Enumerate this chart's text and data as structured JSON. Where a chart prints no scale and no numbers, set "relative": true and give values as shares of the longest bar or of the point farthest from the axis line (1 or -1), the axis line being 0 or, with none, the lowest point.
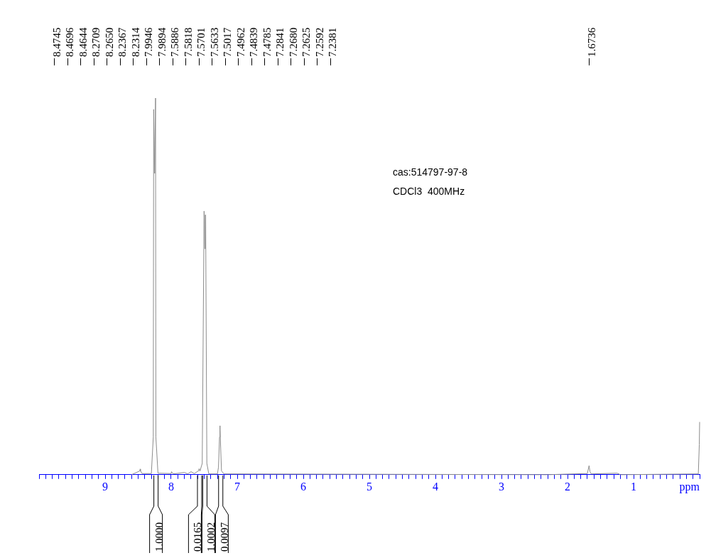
{
  "chart_data": {
    "type": "line",
    "relative": true,
    "xlabel": "ppm",
    "color": "#8c8c8c",
    "xlim": [
      10,
      0
    ],
    "xticks": [
      {
        "value": 10,
        "label": null
      },
      {
        "value": 9.9,
        "label": null
      },
      {
        "value": 9.8,
        "label": null
      },
      {
        "value": 9.7,
        "label": null
      },
      {
        "value": 9.6,
        "label": null
      },
      {
        "value": 9.5,
        "label": null
      },
      {
        "value": 9.4,
        "label": null
      },
      {
        "value": 9.3,
        "label": null
      },
      {
        "value": 9.2,
        "label": null
      },
      {
        "value": 9.1,
        "label": null
      },
      9,
      {
        "value": 8.9,
        "label": null
      },
      {
        "value": 8.8,
        "label": null
      },
      {
        "value": 8.7,
        "label": null
      },
      {
        "value": 8.6,
        "label": null
      },
      {
        "value": 8.5,
        "label": null
      },
      {
        "value": 8.4,
        "label": null
      },
      {
        "value": 8.3,
        "label": null
      },
      {
        "value": 8.2,
        "label": null
      },
      {
        "value": 8.1,
        "label": null
      },
      8,
      {
        "value": 7.9,
        "label": null
      },
      {
        "value": 7.8,
        "label": null
      },
      {
        "value": 7.7,
        "label": null
      },
      {
        "value": 7.6,
        "label": null
      },
      {
        "value": 7.5,
        "label": null
      },
      {
        "value": 7.4,
        "label": null
      },
      {
        "value": 7.3,
        "label": null
      },
      {
        "value": 7.2,
        "label": null
      },
      {
        "value": 7.1,
        "label": null
      },
      7,
      {
        "value": 6.9,
        "label": null
      },
      {
        "value": 6.8,
        "label": null
      },
      {
        "value": 6.7,
        "label": null
      },
      {
        "value": 6.6,
        "label": null
      },
      {
        "value": 6.5,
        "label": null
      },
      {
        "value": 6.4,
        "label": null
      },
      {
        "value": 6.3,
        "label": null
      },
      {
        "value": 6.2,
        "label": null
      },
      {
        "value": 6.1,
        "label": null
      },
      6,
      {
        "value": 5.9,
        "label": null
      },
      {
        "value": 5.8,
        "label": null
      },
      {
        "value": 5.7,
        "label": null
      },
      {
        "value": 5.6,
        "label": null
      },
      {
        "value": 5.5,
        "label": null
      },
      {
        "value": 5.4,
        "label": null
      },
      {
        "value": 5.3,
        "label": null
      },
      {
        "value": 5.2,
        "label": null
      },
      {
        "value": 5.1,
        "label": null
      },
      5,
      {
        "value": 4.9,
        "label": null
      },
      {
        "value": 4.8,
        "label": null
      },
      {
        "value": 4.7,
        "label": null
      },
      {
        "value": 4.6,
        "label": null
      },
      {
        "value": 4.5,
        "label": null
      },
      {
        "value": 4.4,
        "label": null
      },
      {
        "value": 4.3,
        "label": null
      },
      {
        "value": 4.2,
        "label": null
      },
      {
        "value": 4.1,
        "label": null
      },
      4,
      {
        "value": 3.9,
        "label": null
      },
      {
        "value": 3.8,
        "label": null
      },
      {
        "value": 3.7,
        "label": null
      },
      {
        "value": 3.6,
        "label": null
      },
      {
        "value": 3.5,
        "label": null
      },
      {
        "value": 3.4,
        "label": null
      },
      {
        "value": 3.3,
        "label": null
      },
      {
        "value": 3.2,
        "label": null
      },
      {
        "value": 3.1,
        "label": null
      },
      3,
      {
        "value": 2.9,
        "label": null
      },
      {
        "value": 2.8,
        "label": null
      },
      {
        "value": 2.7,
        "label": null
      },
      {
        "value": 2.6,
        "label": null
      },
      {
        "value": 2.5,
        "label": null
      },
      {
        "value": 2.4,
        "label": null
      },
      {
        "value": 2.3,
        "label": null
      },
      {
        "value": 2.2,
        "label": null
      },
      {
        "value": 2.1,
        "label": null
      },
      2,
      {
        "value": 1.9,
        "label": null
      },
      {
        "value": 1.8,
        "label": null
      },
      {
        "value": 1.7,
        "label": null
      },
      {
        "value": 1.6,
        "label": null
      },
      {
        "value": 1.5,
        "label": null
      },
      {
        "value": 1.4,
        "label": null
      },
      {
        "value": 1.3,
        "label": null
      },
      {
        "value": 1.2,
        "label": null
      },
      {
        "value": 1.1,
        "label": null
      },
      1,
      {
        "value": 0.9,
        "label": null
      },
      {
        "value": 0.8,
        "label": null
      },
      {
        "value": 0.7,
        "label": null
      },
      {
        "value": 0.6,
        "label": null
      },
      {
        "value": 0.5,
        "label": null
      },
      {
        "value": 0.4,
        "label": null
      },
      {
        "value": 0.3,
        "label": null
      },
      {
        "value": 0.2,
        "label": null
      },
      {
        "value": 0.1,
        "label": null
      },
      {
        "value": 0,
        "label": null
      }
    ],
    "x": [
      8.6,
      8.4745,
      8.4696,
      8.4644,
      8.44,
      8.3,
      8.2709,
      8.265,
      8.25,
      8.2367,
      8.2314,
      8.2,
      8.0,
      7.9946,
      7.9894,
      7.97,
      7.8,
      7.75,
      7.7,
      7.65,
      7.5886,
      7.5818,
      7.5701,
      7.5633,
      7.53,
      7.5017,
      7.4962,
      7.49,
      7.4839,
      7.4785,
      7.46,
      7.43,
      7.3,
      7.2841,
      7.268,
      7.2625,
      7.2592,
      7.2381,
      7.2,
      2.3,
      1.7,
      1.6736,
      1.66,
      1.64,
      1.25,
      1.2,
      0.02,
      0.005,
      0
    ],
    "values": [
      0,
      0.01,
      0.015,
      0.01,
      0.003,
      0.003,
      0.1,
      0.97,
      0.8,
      1,
      0.1,
      0.004,
      0.003,
      0.008,
      0.008,
      0.002,
      0.006,
      0.002,
      0.008,
      0.003,
      0.01,
      0.015,
      0.015,
      0.01,
      0.03,
      0.7,
      0.7,
      0.6,
      0.69,
      0.69,
      0.03,
      0.002,
      0.002,
      0.02,
      0.1,
      0.13,
      0.12,
      0.01,
      0.002,
      0,
      0.003,
      0.024,
      0.008,
      0.002,
      0.004,
      0,
      0.002,
      0.08,
      0.14
    ],
    "annotations": [
      "cas:514797-97-8",
      "CDCl3  400MHz",
      "8.4745",
      "8.4696",
      "8.4644",
      "8.2709",
      "8.2650",
      "8.2367",
      "8.2314",
      "7.9946",
      "7.9894",
      "7.5886",
      "7.5818",
      "7.5701",
      "7.5633",
      "7.5017",
      "7.4962",
      "7.4839",
      "7.4785",
      "7.2841",
      "7.2680",
      "7.2625",
      "7.2592",
      "7.2381",
      "1.6736",
      {
        "text": "1.0000",
        "x": 8.23,
        "y": 0
      },
      {
        "text": "0.0165",
        "x": 7.57,
        "y": 0
      },
      {
        "text": "1.0002",
        "x": 7.49,
        "y": 0
      },
      {
        "text": "0.0097",
        "x": 7.25,
        "y": 0
      }
    ]
  }
}
